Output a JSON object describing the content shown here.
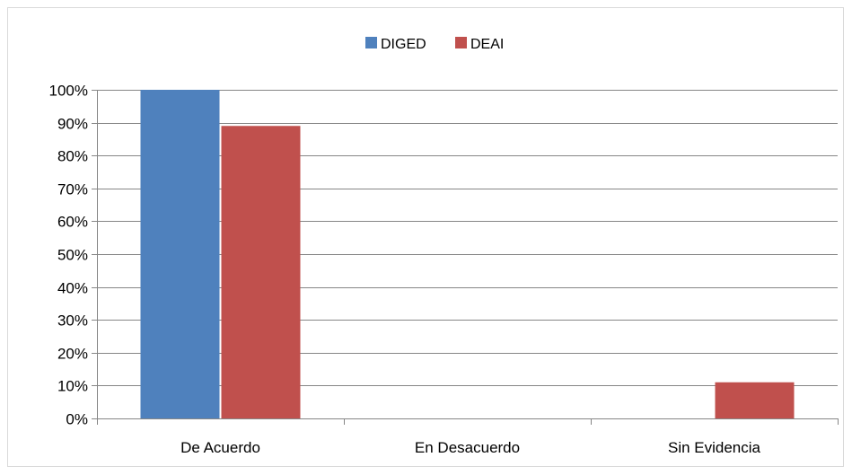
{
  "chart_data": {
    "type": "bar",
    "categories": [
      "De Acuerdo",
      "En Desacuerdo",
      "Sin Evidencia"
    ],
    "series": [
      {
        "name": "DIGED",
        "values": [
          100,
          0,
          0
        ],
        "color": "#4F81BD"
      },
      {
        "name": "DEAI",
        "values": [
          89,
          0,
          11
        ],
        "color": "#C0504D"
      }
    ],
    "ylim": [
      0,
      100
    ],
    "yticks": [
      "0%",
      "10%",
      "20%",
      "30%",
      "40%",
      "50%",
      "60%",
      "70%",
      "80%",
      "90%",
      "100%"
    ],
    "legend": "top-center",
    "grid": true,
    "gridline_color": "#868686"
  }
}
